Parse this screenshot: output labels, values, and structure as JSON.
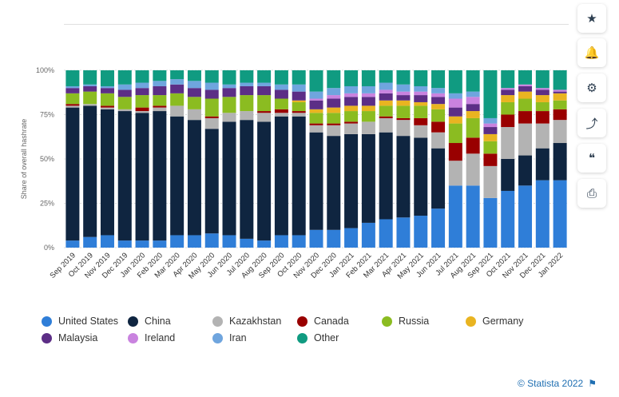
{
  "chart_data": {
    "type": "stacked-bar",
    "ylabel": "Share of overall hashrate",
    "yticks": [
      "0%",
      "25%",
      "50%",
      "75%",
      "100%"
    ],
    "ylim": [
      0,
      100
    ],
    "grid": true,
    "legend_position": "bottom",
    "categories": [
      "Sep 2019",
      "Oct 2019",
      "Nov 2019",
      "Dec 2019",
      "Jan 2020",
      "Feb 2020",
      "Mar 2020",
      "Apr 2020",
      "May 2020",
      "Jun 2020",
      "Jul 2020",
      "Aug 2020",
      "Sep 2020",
      "Oct 2020",
      "Nov 2020",
      "Dec 2020",
      "Jan 2021",
      "Feb 2021",
      "Mar 2021",
      "Apr 2021",
      "May 2021",
      "Jun 2021",
      "Jul 2021",
      "Aug 2021",
      "Sep 2021",
      "Oct 2021",
      "Nov 2021",
      "Dec 2021",
      "Jan 2022"
    ],
    "series": [
      {
        "name": "United States",
        "color": "#2f7ed8",
        "values": [
          4,
          6,
          7,
          4,
          4,
          4,
          7,
          7,
          8,
          7,
          5,
          4,
          7,
          7,
          10,
          10,
          11,
          14,
          16,
          17,
          18,
          22,
          35,
          35,
          28,
          32,
          35,
          38,
          38
        ]
      },
      {
        "name": "China",
        "color": "#0f2540",
        "values": [
          75,
          74,
          71,
          73,
          72,
          73,
          67,
          65,
          59,
          64,
          67,
          67,
          67,
          67,
          55,
          53,
          53,
          50,
          49,
          46,
          44,
          34,
          0,
          0,
          0,
          18,
          17,
          18,
          21
        ]
      },
      {
        "name": "Kazakhstan",
        "color": "#b3b3b3",
        "values": [
          1,
          1,
          1,
          1,
          1,
          2,
          6,
          6,
          6,
          5,
          5,
          5,
          2,
          2,
          4,
          6,
          6,
          7,
          8,
          9,
          7,
          9,
          14,
          18,
          18,
          18,
          18,
          14,
          13
        ]
      },
      {
        "name": "Canada",
        "color": "#990000",
        "values": [
          1,
          0,
          1,
          0,
          2,
          1,
          0,
          0,
          1,
          0,
          0,
          1,
          2,
          1,
          1,
          1,
          1,
          0,
          1,
          1,
          4,
          6,
          10,
          9,
          7,
          7,
          7,
          7,
          6
        ]
      },
      {
        "name": "Russia",
        "color": "#8bbc21",
        "values": [
          6,
          7,
          7,
          7,
          7,
          6,
          7,
          7,
          10,
          9,
          9,
          9,
          6,
          5,
          6,
          6,
          6,
          6,
          6,
          7,
          7,
          7,
          11,
          11,
          7,
          7,
          7,
          5,
          5
        ]
      },
      {
        "name": "Germany",
        "color": "#e9b421",
        "values": [
          0,
          0,
          0,
          0,
          0,
          0,
          0,
          0,
          0,
          0,
          0,
          0,
          0,
          1,
          2,
          3,
          3,
          3,
          3,
          3,
          2,
          3,
          4,
          4,
          4,
          4,
          4,
          4,
          4
        ]
      },
      {
        "name": "Malaysia",
        "color": "#5c2e86",
        "values": [
          3,
          3,
          3,
          4,
          4,
          5,
          5,
          5,
          5,
          5,
          5,
          5,
          5,
          5,
          5,
          5,
          5,
          5,
          4,
          3,
          4,
          4,
          5,
          4,
          4,
          3,
          3,
          3,
          1
        ]
      },
      {
        "name": "Ireland",
        "color": "#c983df",
        "values": [
          0,
          0,
          0,
          0,
          0,
          0,
          0,
          0,
          0,
          0,
          0,
          0,
          0,
          0,
          1,
          2,
          2,
          2,
          2,
          2,
          2,
          2,
          5,
          4,
          2,
          1,
          1,
          1,
          1
        ]
      },
      {
        "name": "Iran",
        "color": "#6fa5de",
        "values": [
          1,
          1,
          1,
          3,
          3,
          3,
          3,
          4,
          4,
          2,
          2,
          2,
          3,
          4,
          4,
          4,
          4,
          4,
          4,
          4,
          3,
          3,
          3,
          3,
          3,
          0,
          0,
          0,
          0
        ]
      },
      {
        "name": "Other",
        "color": "#109b81",
        "values": [
          9,
          8,
          9,
          8,
          7,
          6,
          5,
          6,
          7,
          8,
          7,
          7,
          8,
          8,
          12,
          10,
          9,
          9,
          7,
          8,
          9,
          10,
          13,
          12,
          27,
          10,
          8,
          10,
          11
        ]
      }
    ]
  },
  "legend": [
    {
      "label": "United States",
      "color": "#2f7ed8"
    },
    {
      "label": "China",
      "color": "#0f2540"
    },
    {
      "label": "Kazakhstan",
      "color": "#b3b3b3"
    },
    {
      "label": "Canada",
      "color": "#990000"
    },
    {
      "label": "Russia",
      "color": "#8bbc21"
    },
    {
      "label": "Germany",
      "color": "#e9b421"
    },
    {
      "label": "Malaysia",
      "color": "#5c2e86"
    },
    {
      "label": "Ireland",
      "color": "#c983df"
    },
    {
      "label": "Iran",
      "color": "#6fa5de"
    },
    {
      "label": "Other",
      "color": "#109b81"
    }
  ],
  "sidebar": {
    "icons": [
      "star-icon",
      "bell-icon",
      "gear-icon",
      "share-icon",
      "quote-icon",
      "print-icon"
    ],
    "glyphs": [
      "★",
      "🔔",
      "⚙",
      "⤴",
      "❝",
      "⎙"
    ]
  },
  "credit": {
    "text": "© Statista 2022"
  }
}
